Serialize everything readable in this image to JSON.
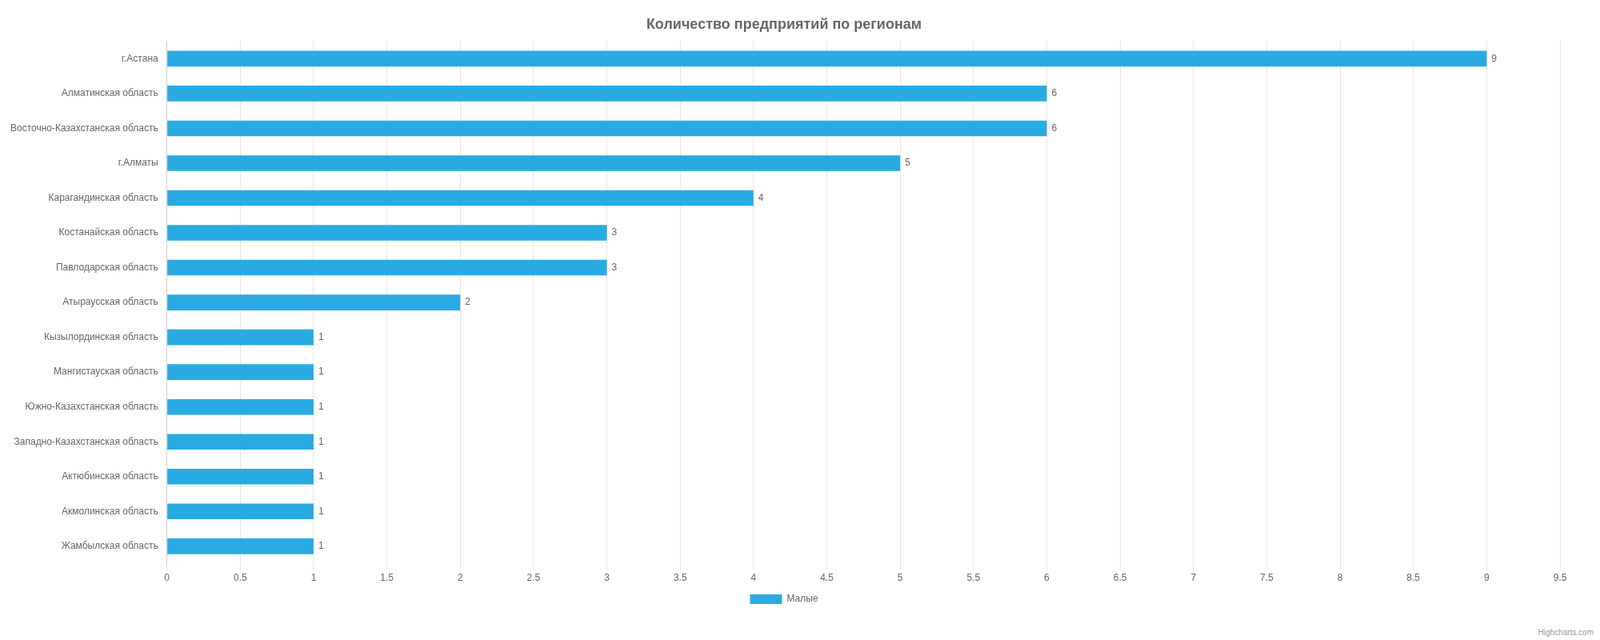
{
  "chart_data": {
    "type": "bar",
    "orientation": "horizontal",
    "title": "Количество предприятий по регионам",
    "categories": [
      "г.Астана",
      "Алматинская область",
      "Восточно-Казахстанская область",
      "г.Алматы",
      "Карагандинская область",
      "Костанайская область",
      "Павлодарская область",
      "Атыраусская область",
      "Кызылординская область",
      "Мангистауская область",
      "Южно-Казахстанская область",
      "Западно-Казахстанская область",
      "Актюбинская область",
      "Акмолинская область",
      "Жамбылская область"
    ],
    "series": [
      {
        "name": "Малые",
        "color": "#29ABE2",
        "values": [
          9,
          6,
          6,
          5,
          4,
          3,
          3,
          2,
          1,
          1,
          1,
          1,
          1,
          1,
          1
        ]
      }
    ],
    "xlim": [
      0,
      9.5
    ],
    "xticks": [
      0,
      0.5,
      1,
      1.5,
      2,
      2.5,
      3,
      3.5,
      4,
      4.5,
      5,
      5.5,
      6,
      6.5,
      7,
      7.5,
      8,
      8.5,
      9,
      9.5
    ],
    "grid": true,
    "legend": "bottom",
    "data_labels": true,
    "annotations": [
      "Highcharts.com"
    ]
  }
}
